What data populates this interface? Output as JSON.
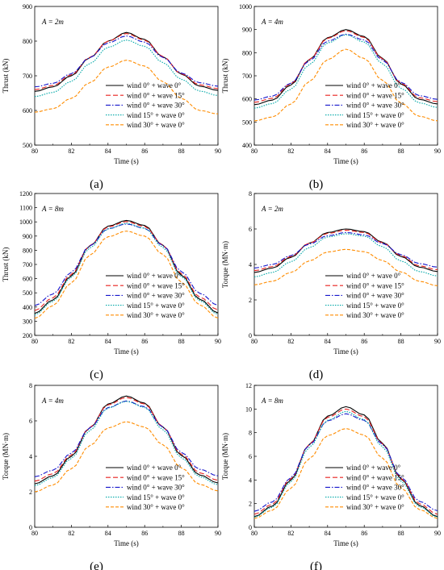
{
  "legend_entries": [
    "wind 0° + wave 0°",
    "wind 0° + wave 15°",
    "wind 0° + wave 30°",
    "wind 15° + wave 0°",
    "wind 30° + wave 0°"
  ],
  "series_colors": [
    "#000000",
    "#e8201f",
    "#1515cc",
    "#00a8a8",
    "#ff8c00"
  ],
  "series_dash": [
    "",
    "6,3",
    "6,2,1.5,2",
    "1.5,1.5",
    "4,2"
  ],
  "chart_data": [
    {
      "type": "line",
      "panel_label": "(a)",
      "annotation": "A = 2m",
      "xlabel": "Time (s)",
      "ylabel": "Thrust (kN)",
      "xlim": [
        80,
        90
      ],
      "ylim": [
        500,
        900
      ],
      "xticks": [
        80,
        82,
        84,
        86,
        88,
        90
      ],
      "yticks": [
        500,
        600,
        700,
        800,
        900
      ],
      "legend_position": "bottom-right",
      "x": [
        80,
        81,
        82,
        83,
        84,
        85,
        86,
        87,
        88,
        89,
        90
      ],
      "series": [
        {
          "name": "wind 0° + wave 0°",
          "values": [
            655,
            668,
            700,
            752,
            800,
            825,
            805,
            755,
            705,
            670,
            658
          ]
        },
        {
          "name": "wind 0° + wave 15°",
          "values": [
            660,
            672,
            703,
            753,
            800,
            822,
            803,
            755,
            706,
            674,
            663
          ]
        },
        {
          "name": "wind 0° + wave 30°",
          "values": [
            668,
            678,
            706,
            752,
            795,
            815,
            797,
            753,
            708,
            680,
            670
          ]
        },
        {
          "name": "wind 15° + wave 0°",
          "values": [
            640,
            652,
            684,
            735,
            782,
            803,
            785,
            738,
            690,
            656,
            643
          ]
        },
        {
          "name": "wind 30° + wave 0°",
          "values": [
            595,
            605,
            635,
            680,
            725,
            745,
            728,
            683,
            635,
            600,
            590
          ]
        }
      ]
    },
    {
      "type": "line",
      "panel_label": "(b)",
      "annotation": "A = 4m",
      "xlabel": "Time (s)",
      "ylabel": "Thrust (kN)",
      "xlim": [
        80,
        90
      ],
      "ylim": [
        400,
        1000
      ],
      "xticks": [
        80,
        82,
        84,
        86,
        88,
        90
      ],
      "yticks": [
        400,
        500,
        600,
        700,
        800,
        900,
        1000
      ],
      "legend_position": "bottom-right",
      "x": [
        80,
        81,
        82,
        83,
        84,
        85,
        86,
        87,
        88,
        89,
        90
      ],
      "series": [
        {
          "name": "wind 0° + wave 0°",
          "values": [
            575,
            595,
            660,
            770,
            865,
            900,
            870,
            775,
            665,
            598,
            578
          ]
        },
        {
          "name": "wind 0° + wave 15°",
          "values": [
            585,
            603,
            665,
            770,
            862,
            895,
            866,
            773,
            668,
            605,
            588
          ]
        },
        {
          "name": "wind 0° + wave 30°",
          "values": [
            595,
            612,
            668,
            765,
            850,
            880,
            855,
            768,
            672,
            614,
            598
          ]
        },
        {
          "name": "wind 15° + wave 0°",
          "values": [
            560,
            580,
            642,
            748,
            842,
            878,
            846,
            752,
            646,
            583,
            563
          ]
        },
        {
          "name": "wind 30° + wave 0°",
          "values": [
            505,
            522,
            578,
            675,
            770,
            815,
            775,
            680,
            582,
            525,
            505
          ]
        }
      ]
    },
    {
      "type": "line",
      "panel_label": "(c)",
      "annotation": "A = 8m",
      "xlabel": "Time (s)",
      "ylabel": "Thrust (kN)",
      "xlim": [
        80,
        90
      ],
      "ylim": [
        200,
        1200
      ],
      "xticks": [
        80,
        82,
        84,
        86,
        88,
        90
      ],
      "yticks": [
        200,
        300,
        400,
        500,
        600,
        700,
        800,
        900,
        1000,
        1100,
        1200
      ],
      "legend_position": "bottom-right",
      "x": [
        80,
        81,
        82,
        83,
        84,
        85,
        86,
        87,
        88,
        89,
        90
      ],
      "series": [
        {
          "name": "wind 0° + wave 0°",
          "values": [
            355,
            450,
            620,
            830,
            970,
            1010,
            975,
            835,
            625,
            455,
            358
          ]
        },
        {
          "name": "wind 0° + wave 15°",
          "values": [
            375,
            465,
            630,
            832,
            965,
            1002,
            968,
            836,
            635,
            470,
            380
          ]
        },
        {
          "name": "wind 0° + wave 30°",
          "values": [
            410,
            492,
            645,
            830,
            952,
            985,
            955,
            833,
            650,
            497,
            412
          ]
        },
        {
          "name": "wind 15° + wave 0°",
          "values": [
            345,
            440,
            610,
            815,
            950,
            990,
            955,
            820,
            615,
            445,
            348
          ]
        },
        {
          "name": "wind 30° + wave 0°",
          "values": [
            320,
            410,
            570,
            765,
            895,
            935,
            900,
            770,
            575,
            415,
            322
          ]
        }
      ]
    },
    {
      "type": "line",
      "panel_label": "(d)",
      "annotation": "A = 2m",
      "xlabel": "Time (s)",
      "ylabel": "Torque (MN·m)",
      "xlim": [
        80,
        90
      ],
      "ylim": [
        0,
        8
      ],
      "xticks": [
        80,
        82,
        84,
        86,
        88,
        90
      ],
      "yticks": [
        0,
        2,
        4,
        6,
        8
      ],
      "legend_position": "bottom-right",
      "x": [
        80,
        81,
        82,
        83,
        84,
        85,
        86,
        87,
        88,
        89,
        90
      ],
      "series": [
        {
          "name": "wind 0° + wave 0°",
          "values": [
            3.55,
            3.8,
            4.4,
            5.2,
            5.8,
            6.0,
            5.85,
            5.25,
            4.45,
            3.85,
            3.6
          ]
        },
        {
          "name": "wind 0° + wave 15°",
          "values": [
            3.65,
            3.88,
            4.45,
            5.2,
            5.75,
            5.93,
            5.8,
            5.22,
            4.5,
            3.92,
            3.7
          ]
        },
        {
          "name": "wind 0° + wave 30°",
          "values": [
            3.8,
            4.0,
            4.5,
            5.15,
            5.62,
            5.8,
            5.67,
            5.18,
            4.55,
            4.05,
            3.85
          ]
        },
        {
          "name": "wind 15° + wave 0°",
          "values": [
            3.3,
            3.55,
            4.15,
            4.95,
            5.55,
            5.73,
            5.6,
            5.0,
            4.2,
            3.6,
            3.35
          ]
        },
        {
          "name": "wind 30° + wave 0°",
          "values": [
            2.85,
            3.05,
            3.55,
            4.2,
            4.7,
            4.85,
            4.72,
            4.22,
            3.58,
            3.05,
            2.8
          ]
        }
      ]
    },
    {
      "type": "line",
      "panel_label": "(e)",
      "annotation": "A = 4m",
      "xlabel": "Time (s)",
      "ylabel": "Torque (MN·m)",
      "xlim": [
        80,
        90
      ],
      "ylim": [
        0,
        8
      ],
      "xticks": [
        80,
        82,
        84,
        86,
        88,
        90
      ],
      "yticks": [
        0,
        2,
        4,
        6,
        8
      ],
      "legend_position": "bottom-right",
      "x": [
        80,
        81,
        82,
        83,
        84,
        85,
        86,
        87,
        88,
        89,
        90
      ],
      "series": [
        {
          "name": "wind 0° + wave 0°",
          "values": [
            2.45,
            2.9,
            4.0,
            5.6,
            6.95,
            7.4,
            7.0,
            5.65,
            4.05,
            2.95,
            2.5
          ]
        },
        {
          "name": "wind 0° + wave 15°",
          "values": [
            2.6,
            3.02,
            4.08,
            5.62,
            6.9,
            7.32,
            6.95,
            5.66,
            4.12,
            3.07,
            2.65
          ]
        },
        {
          "name": "wind 0° + wave 30°",
          "values": [
            2.85,
            3.22,
            4.18,
            5.6,
            6.75,
            7.12,
            6.8,
            5.64,
            4.22,
            3.27,
            2.9
          ]
        },
        {
          "name": "wind 15° + wave 0°",
          "values": [
            2.35,
            2.8,
            3.88,
            5.45,
            6.72,
            7.1,
            6.76,
            5.5,
            3.92,
            2.85,
            2.4
          ]
        },
        {
          "name": "wind 30° + wave 0°",
          "values": [
            2.0,
            2.38,
            3.3,
            4.6,
            5.6,
            5.95,
            5.65,
            4.65,
            3.35,
            2.42,
            2.05
          ]
        }
      ]
    },
    {
      "type": "line",
      "panel_label": "(f)",
      "annotation": "A = 8m",
      "xlabel": "Time (s)",
      "ylabel": "Torque (MN·m)",
      "xlim": [
        80,
        90
      ],
      "ylim": [
        0,
        12
      ],
      "xticks": [
        80,
        82,
        84,
        86,
        88,
        90
      ],
      "yticks": [
        0,
        2,
        4,
        6,
        8,
        10,
        12
      ],
      "legend_position": "bottom-right",
      "x": [
        80,
        81,
        82,
        83,
        84,
        85,
        86,
        87,
        88,
        89,
        90
      ],
      "series": [
        {
          "name": "wind 0° + wave 0°",
          "values": [
            0.9,
            1.8,
            4.0,
            7.0,
            9.4,
            10.2,
            9.5,
            7.1,
            4.1,
            1.85,
            0.9
          ]
        },
        {
          "name": "wind 0° + wave 15°",
          "values": [
            1.1,
            1.95,
            4.1,
            7.0,
            9.3,
            10.0,
            9.35,
            7.05,
            4.15,
            2.0,
            1.1
          ]
        },
        {
          "name": "wind 0° + wave 30°",
          "values": [
            1.35,
            2.15,
            4.2,
            6.95,
            9.0,
            9.6,
            9.05,
            7.0,
            4.25,
            2.2,
            1.4
          ]
        },
        {
          "name": "wind 15° + wave 0°",
          "values": [
            0.85,
            1.7,
            3.85,
            6.75,
            9.05,
            9.8,
            9.1,
            6.8,
            3.9,
            1.75,
            0.85
          ]
        },
        {
          "name": "wind 30° + wave 0°",
          "values": [
            0.75,
            1.45,
            3.3,
            5.8,
            7.75,
            8.35,
            7.8,
            5.85,
            3.35,
            1.5,
            0.75
          ]
        }
      ]
    }
  ]
}
